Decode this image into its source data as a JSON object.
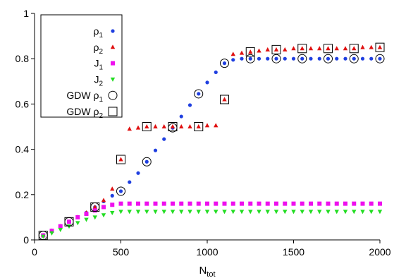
{
  "chart_data": {
    "type": "scatter",
    "xlim": [
      0,
      2000
    ],
    "ylim": [
      0,
      1
    ],
    "x_ticks": [
      0,
      500,
      1000,
      1500,
      2000
    ],
    "y_ticks": [
      0,
      0.2,
      0.4,
      0.6,
      0.8,
      1
    ],
    "x_tick_labels": [
      "0",
      "500",
      "1000",
      "1500",
      "2000"
    ],
    "y_tick_labels": [
      "0",
      "0.2",
      "0.4",
      "0.6",
      "0.8",
      "1"
    ],
    "xlabel": {
      "base": "N",
      "sub": "tot"
    },
    "grid": false,
    "legend": {
      "placement": "top-left"
    },
    "series": [
      {
        "name": "ρ1",
        "label_base": "ρ",
        "label_sub": "1",
        "marker": "dot",
        "color": "#1f3fe0",
        "x": [
          50,
          100,
          150,
          200,
          250,
          300,
          350,
          400,
          450,
          500,
          550,
          600,
          650,
          700,
          750,
          800,
          850,
          900,
          950,
          1000,
          1050,
          1100,
          1150,
          1200,
          1250,
          1300,
          1350,
          1400,
          1450,
          1500,
          1550,
          1600,
          1650,
          1700,
          1750,
          1800,
          1850,
          1900,
          1950,
          2000
        ],
        "y": [
          0.02,
          0.04,
          0.06,
          0.08,
          0.1,
          0.12,
          0.145,
          0.17,
          0.195,
          0.215,
          0.255,
          0.295,
          0.345,
          0.395,
          0.445,
          0.495,
          0.545,
          0.595,
          0.645,
          0.695,
          0.74,
          0.78,
          0.795,
          0.8,
          0.8,
          0.8,
          0.8,
          0.8,
          0.8,
          0.8,
          0.8,
          0.8,
          0.8,
          0.8,
          0.8,
          0.8,
          0.8,
          0.8,
          0.8,
          0.8
        ]
      },
      {
        "name": "ρ2",
        "label_base": "ρ",
        "label_sub": "2",
        "marker": "triangle",
        "color": "#e01010",
        "x": [
          50,
          100,
          150,
          200,
          250,
          300,
          350,
          400,
          450,
          500,
          550,
          600,
          650,
          700,
          750,
          800,
          850,
          900,
          950,
          1000,
          1050,
          1100,
          1150,
          1200,
          1250,
          1300,
          1350,
          1400,
          1450,
          1500,
          1550,
          1600,
          1650,
          1700,
          1750,
          1800,
          1850,
          1900,
          1950,
          2000
        ],
        "y": [
          0.02,
          0.04,
          0.06,
          0.08,
          0.1,
          0.12,
          0.145,
          0.175,
          0.225,
          0.355,
          0.49,
          0.495,
          0.5,
          0.5,
          0.5,
          0.5,
          0.5,
          0.5,
          0.5,
          0.505,
          0.505,
          0.62,
          0.82,
          0.825,
          0.83,
          0.835,
          0.84,
          0.84,
          0.84,
          0.845,
          0.845,
          0.845,
          0.845,
          0.845,
          0.845,
          0.845,
          0.845,
          0.85,
          0.85,
          0.85
        ]
      },
      {
        "name": "J1",
        "label_base": "J",
        "label_sub": "1",
        "marker": "square",
        "color": "#ee10ee",
        "x": [
          50,
          100,
          150,
          200,
          250,
          300,
          350,
          400,
          450,
          500,
          550,
          600,
          650,
          700,
          750,
          800,
          850,
          900,
          950,
          1000,
          1050,
          1100,
          1150,
          1200,
          1250,
          1300,
          1350,
          1400,
          1450,
          1500,
          1550,
          1600,
          1650,
          1700,
          1750,
          1800,
          1850,
          1900,
          1950,
          2000
        ],
        "y": [
          0.02,
          0.04,
          0.06,
          0.08,
          0.1,
          0.115,
          0.13,
          0.145,
          0.155,
          0.16,
          0.16,
          0.16,
          0.16,
          0.16,
          0.16,
          0.16,
          0.16,
          0.16,
          0.16,
          0.16,
          0.16,
          0.16,
          0.16,
          0.16,
          0.16,
          0.16,
          0.16,
          0.16,
          0.16,
          0.16,
          0.16,
          0.16,
          0.16,
          0.16,
          0.16,
          0.16,
          0.16,
          0.16,
          0.16,
          0.16
        ]
      },
      {
        "name": "J2",
        "label_base": "J",
        "label_sub": "2",
        "marker": "triangle-down",
        "color": "#22dd22",
        "x": [
          50,
          100,
          150,
          200,
          250,
          300,
          350,
          400,
          450,
          500,
          550,
          600,
          650,
          700,
          750,
          800,
          850,
          900,
          950,
          1000,
          1050,
          1100,
          1150,
          1200,
          1250,
          1300,
          1350,
          1400,
          1450,
          1500,
          1550,
          1600,
          1650,
          1700,
          1750,
          1800,
          1850,
          1900,
          1950,
          2000
        ],
        "y": [
          0.015,
          0.03,
          0.045,
          0.06,
          0.075,
          0.09,
          0.1,
          0.11,
          0.12,
          0.125,
          0.125,
          0.125,
          0.125,
          0.125,
          0.125,
          0.125,
          0.125,
          0.125,
          0.125,
          0.125,
          0.125,
          0.125,
          0.125,
          0.125,
          0.125,
          0.125,
          0.125,
          0.125,
          0.125,
          0.125,
          0.125,
          0.125,
          0.125,
          0.125,
          0.125,
          0.125,
          0.125,
          0.125,
          0.125,
          0.125
        ]
      },
      {
        "name": "GDW ρ1",
        "label_base": "GDW ρ",
        "label_sub": "1",
        "marker": "open-circle",
        "color": "#000000",
        "x": [
          50,
          200,
          350,
          500,
          650,
          800,
          950,
          1100,
          1250,
          1400,
          1550,
          1700,
          1850,
          2000
        ],
        "y": [
          0.02,
          0.08,
          0.145,
          0.215,
          0.345,
          0.495,
          0.645,
          0.78,
          0.8,
          0.8,
          0.8,
          0.8,
          0.8,
          0.8
        ]
      },
      {
        "name": "GDW ρ2",
        "label_base": "GDW ρ",
        "label_sub": "2",
        "marker": "open-square",
        "color": "#000000",
        "x": [
          50,
          200,
          350,
          500,
          650,
          800,
          950,
          1100,
          1250,
          1400,
          1550,
          1700,
          1850,
          2000
        ],
        "y": [
          0.02,
          0.08,
          0.145,
          0.355,
          0.5,
          0.5,
          0.5,
          0.62,
          0.83,
          0.84,
          0.845,
          0.845,
          0.845,
          0.85
        ]
      }
    ]
  }
}
